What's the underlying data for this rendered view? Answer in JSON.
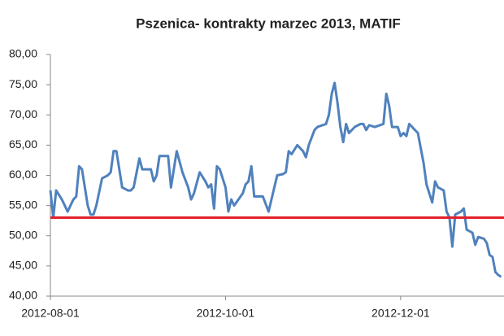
{
  "chart_data": {
    "type": "line",
    "title": "Pszenica- kontrakty marzec 2013, MATIF",
    "x": [
      "2012-08-01",
      "2012-08-02",
      "2012-08-03",
      "2012-08-05",
      "2012-08-07",
      "2012-08-09",
      "2012-08-10",
      "2012-08-11",
      "2012-08-12",
      "2012-08-13",
      "2012-08-14",
      "2012-08-15",
      "2012-08-16",
      "2012-08-17",
      "2012-08-19",
      "2012-08-21",
      "2012-08-22",
      "2012-08-23",
      "2012-08-24",
      "2012-08-25",
      "2012-08-26",
      "2012-08-28",
      "2012-08-29",
      "2012-08-30",
      "2012-09-01",
      "2012-09-02",
      "2012-09-05",
      "2012-09-06",
      "2012-09-07",
      "2012-09-08",
      "2012-09-11",
      "2012-09-12",
      "2012-09-13",
      "2012-09-14",
      "2012-09-16",
      "2012-09-18",
      "2012-09-19",
      "2012-09-20",
      "2012-09-22",
      "2012-09-24",
      "2012-09-25",
      "2012-09-26",
      "2012-09-27",
      "2012-09-28",
      "2012-09-29",
      "2012-10-01",
      "2012-10-02",
      "2012-10-03",
      "2012-10-04",
      "2012-10-07",
      "2012-10-08",
      "2012-10-09",
      "2012-10-10",
      "2012-10-11",
      "2012-10-14",
      "2012-10-16",
      "2012-10-17",
      "2012-10-19",
      "2012-10-21",
      "2012-10-22",
      "2012-10-23",
      "2012-10-24",
      "2012-10-26",
      "2012-10-28",
      "2012-10-29",
      "2012-10-30",
      "2012-11-01",
      "2012-11-02",
      "2012-11-05",
      "2012-11-06",
      "2012-11-07",
      "2012-11-08",
      "2012-11-09",
      "2012-11-10",
      "2012-11-11",
      "2012-11-12",
      "2012-11-13",
      "2012-11-15",
      "2012-11-17",
      "2012-11-18",
      "2012-11-19",
      "2012-11-20",
      "2012-11-22",
      "2012-11-25",
      "2012-11-26",
      "2012-11-27",
      "2012-11-28",
      "2012-11-30",
      "2012-12-01",
      "2012-12-02",
      "2012-12-03",
      "2012-12-04",
      "2012-12-07",
      "2012-12-09",
      "2012-12-10",
      "2012-12-11",
      "2012-12-12",
      "2012-12-13",
      "2012-12-14",
      "2012-12-16",
      "2012-12-17",
      "2012-12-18",
      "2012-12-19",
      "2012-12-20",
      "2012-12-22",
      "2012-12-23",
      "2012-12-24",
      "2012-12-26",
      "2012-12-27",
      "2012-12-28",
      "2012-12-30",
      "2012-12-31",
      "2013-01-01",
      "2013-01-02",
      "2013-01-03",
      "2013-01-04",
      "2013-01-05"
    ],
    "series": [
      {
        "name": "Pszenica",
        "color": "#4f81bd",
        "values": [
          57.5,
          53,
          57.5,
          56,
          54,
          56,
          56.5,
          61.5,
          61,
          58,
          55,
          53.5,
          53.5,
          55,
          59.5,
          60,
          60.5,
          64,
          64,
          61,
          58,
          57.5,
          57.5,
          58,
          62.8,
          61,
          61,
          59,
          60,
          63.2,
          63.2,
          58,
          61,
          64,
          60.5,
          58,
          56,
          57,
          60.5,
          59,
          58,
          58.5,
          54.5,
          61.5,
          61,
          58,
          54,
          56,
          55,
          57,
          58.5,
          59,
          61.5,
          56.5,
          56.5,
          54,
          56,
          60,
          60.2,
          60.5,
          64,
          63.5,
          65,
          64,
          63,
          65,
          67.5,
          68,
          68.5,
          70,
          73.5,
          75.3,
          72,
          68,
          65.5,
          68.5,
          67,
          68,
          68.5,
          68.5,
          67.5,
          68.3,
          68,
          68.5,
          73.5,
          71.5,
          68,
          68,
          66.5,
          67,
          66.5,
          68.5,
          67,
          62,
          58.5,
          57,
          55.5,
          59,
          58,
          57.5,
          54,
          53,
          48.2,
          53.5,
          54,
          54.5,
          51,
          50.5,
          48.5,
          49.8,
          49.5,
          48.8,
          46.8,
          46.5,
          44,
          43.5,
          43.2
        ]
      }
    ],
    "reference_line": {
      "value": 53,
      "color": "#e3202a"
    },
    "xlim": [
      "2012-08-01",
      "2013-01-06"
    ],
    "xticks": [
      "2012-08-01",
      "2012-10-01",
      "2012-12-01"
    ],
    "ylim": [
      40,
      80
    ],
    "yticks": [
      {
        "value": 40,
        "label": "40,00"
      },
      {
        "value": 45,
        "label": "45,00"
      },
      {
        "value": 50,
        "label": "50,00"
      },
      {
        "value": 55,
        "label": "55,00"
      },
      {
        "value": 60,
        "label": "60,00"
      },
      {
        "value": 65,
        "label": "65,00"
      },
      {
        "value": 70,
        "label": "70,00"
      },
      {
        "value": 75,
        "label": "75,00"
      },
      {
        "value": 80,
        "label": "80,00"
      }
    ],
    "grid": false
  }
}
